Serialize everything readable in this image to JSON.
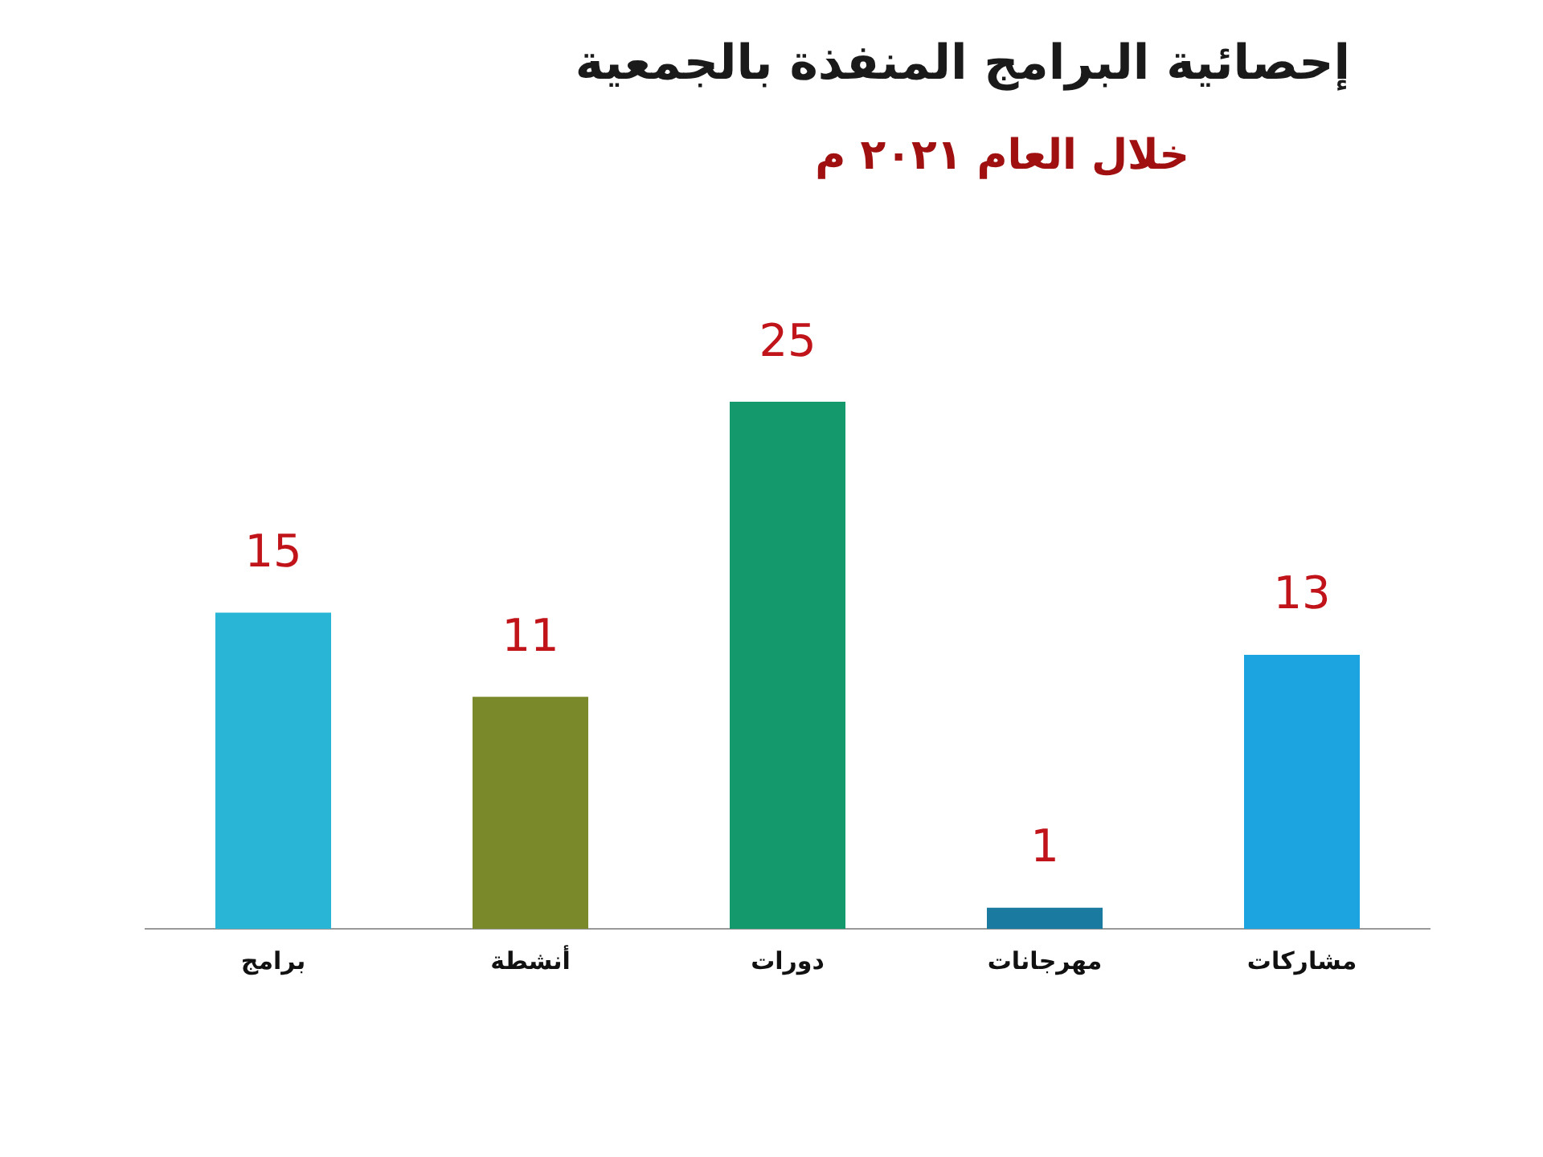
{
  "chart_data": {
    "type": "bar",
    "title": "إحصائية البرامج المنفذة بالجمعية",
    "subtitle": "خلال العام ٢٠٢١ م",
    "categories": [
      "برامج",
      "أنشطة",
      "دورات",
      "مهرجانات",
      "مشاركات"
    ],
    "values": [
      15,
      11,
      25,
      1,
      13
    ],
    "colors": [
      "#29b6d6",
      "#7a8a2a",
      "#13996b",
      "#1a7aa0",
      "#1ba4e0"
    ],
    "data_labels": true
  }
}
